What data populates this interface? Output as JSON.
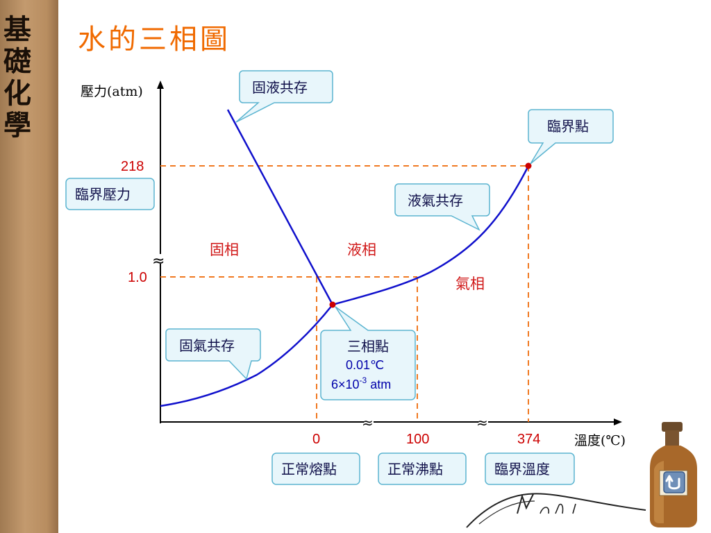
{
  "sidebar": {
    "chars": [
      "基",
      "礎",
      "化",
      "學"
    ]
  },
  "title": "水的三相圖",
  "axes": {
    "y_label": "壓力(atm)",
    "x_label": "溫度(℃)",
    "break_symbol": "≈"
  },
  "ticks": {
    "p_critical": "218",
    "p_one": "1.0",
    "t_zero": "0",
    "t_hundred": "100",
    "t_critical": "374"
  },
  "regions": {
    "solid": "固相",
    "liquid": "液相",
    "gas": "氣相"
  },
  "callouts": {
    "solid_liquid": "固液共存",
    "critical_point": "臨界點",
    "critical_pressure": "臨界壓力",
    "liquid_gas": "液氣共存",
    "solid_gas": "固氣共存",
    "triple_point": {
      "title": "三相點",
      "temp": "0.01℃",
      "pressure_base": "6×10",
      "pressure_exp": "-3",
      "pressure_unit": " atm"
    },
    "normal_melting": "正常熔點",
    "normal_boiling": "正常沸點",
    "critical_temperature": "臨界溫度"
  },
  "chart_data": {
    "type": "line",
    "xlabel": "溫度(℃)",
    "ylabel": "壓力(atm)",
    "series": [
      {
        "name": "",
        "points": [
          {
            "x": 0.01,
            "y": 0.006
          },
          {
            "x": 100,
            "y": 1.0
          },
          {
            "x": 374,
            "y": 218
          }
        ]
      }
    ],
    "critical_point": {
      "x": 374,
      "y": 218
    },
    "triple_point": {
      "x": 0.01,
      "y": 0.006
    },
    "colors": {
      "curve": "#1010cc",
      "guides": "#f07820",
      "points": "#cc0000"
    }
  }
}
